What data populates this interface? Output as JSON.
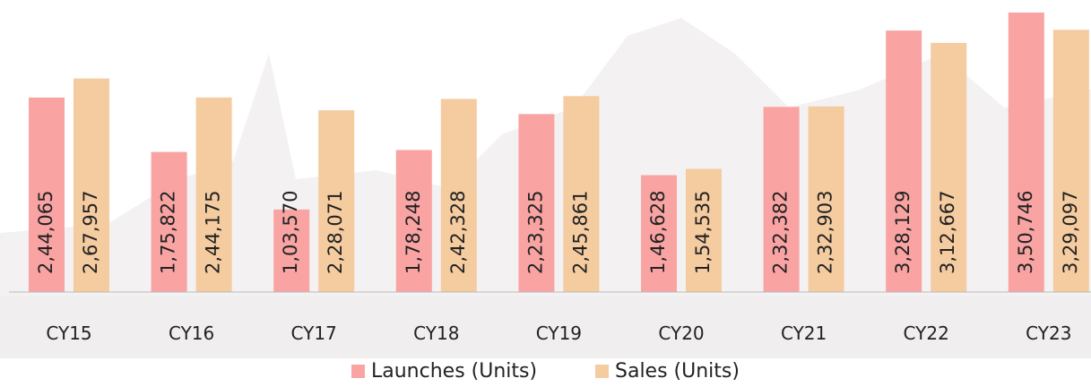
{
  "chart_data": {
    "type": "bar",
    "categories": [
      "CY15",
      "CY16",
      "CY17",
      "CY18",
      "CY19",
      "CY20",
      "CY21",
      "CY22",
      "CY23"
    ],
    "series": [
      {
        "name": "Launches (Units)",
        "color": "#f9a3a3",
        "values": [
          244065,
          175822,
          103570,
          178248,
          223325,
          146628,
          232382,
          328129,
          350746
        ],
        "value_labels": [
          "2,44,065",
          "1,75,822",
          "1,03,570",
          "1,78,248",
          "2,23,325",
          "1,46,628",
          "2,32,382",
          "3,28,129",
          "3,50,746"
        ]
      },
      {
        "name": "Sales (Units)",
        "color": "#f5cba0",
        "values": [
          267957,
          244175,
          228071,
          242328,
          245861,
          154535,
          232903,
          312667,
          329097
        ],
        "value_labels": [
          "2,67,957",
          "2,44,175",
          "2,28,071",
          "2,42,328",
          "2,45,861",
          "1,54,535",
          "2,32,903",
          "3,12,667",
          "3,29,097"
        ]
      }
    ],
    "legend": "bottom"
  }
}
